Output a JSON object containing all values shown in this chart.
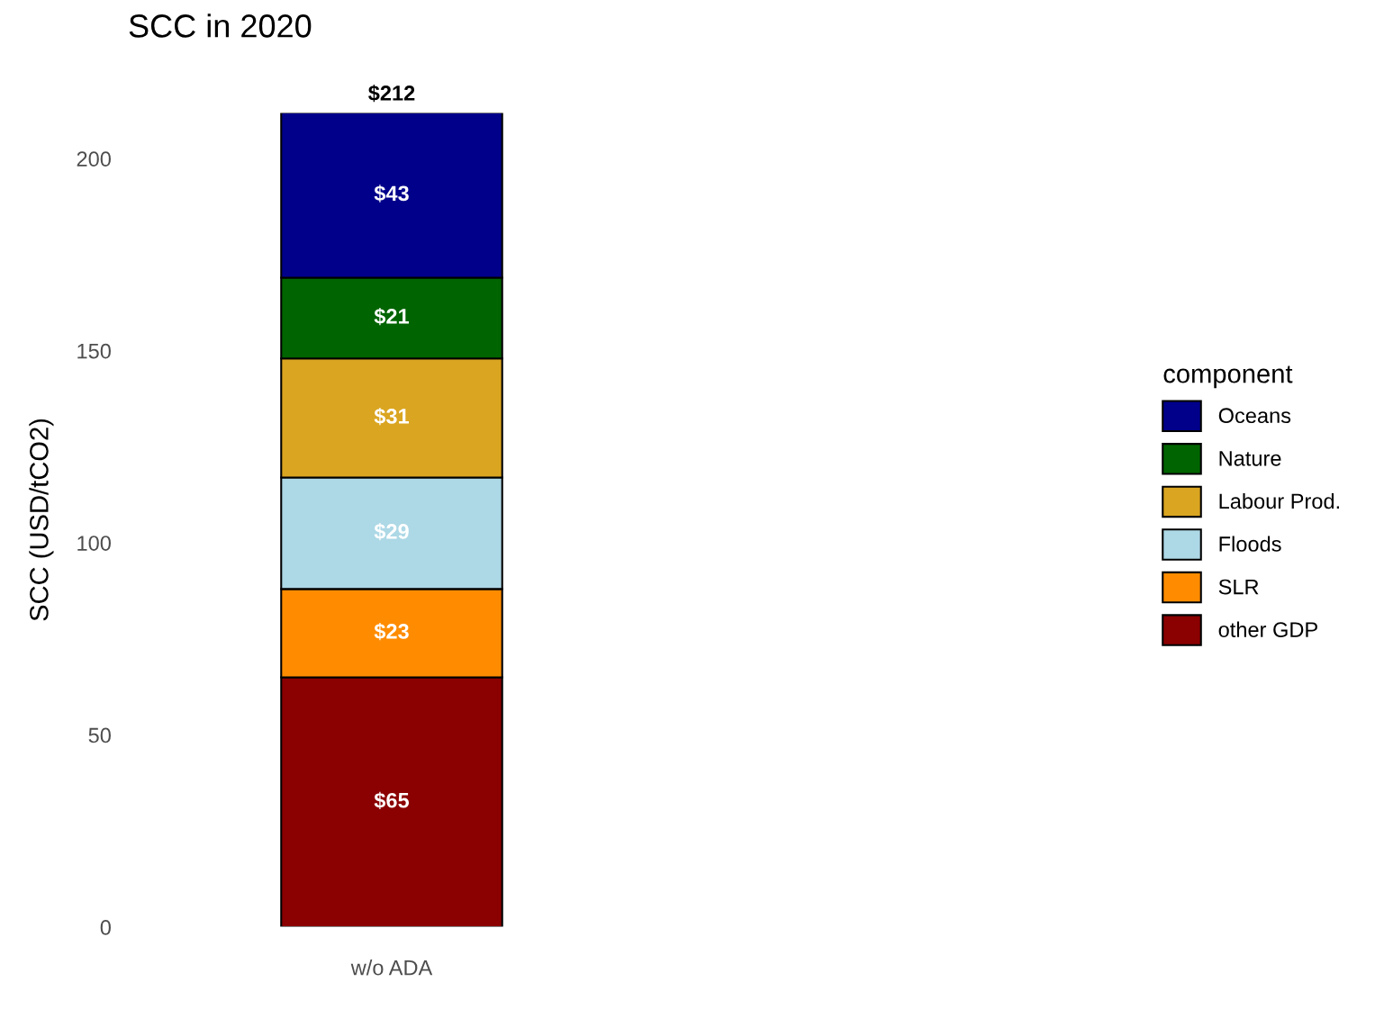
{
  "chart_data": {
    "type": "bar",
    "title": "SCC in 2020",
    "ylabel": "SCC (USD/tCO2)",
    "legend_title": "component",
    "categories": [
      "w/o ADA"
    ],
    "stacked": true,
    "series": [
      {
        "name": "other GDP",
        "color": "#8b0000",
        "values": [
          65
        ],
        "value_labels": [
          "$65"
        ]
      },
      {
        "name": "SLR",
        "color": "#ff8c00",
        "values": [
          23
        ],
        "value_labels": [
          "$23"
        ]
      },
      {
        "name": "Floods",
        "color": "#add8e6",
        "values": [
          29
        ],
        "value_labels": [
          "$29"
        ]
      },
      {
        "name": "Labour Prod.",
        "color": "#daa520",
        "values": [
          31
        ],
        "value_labels": [
          "$31"
        ]
      },
      {
        "name": "Nature",
        "color": "#006400",
        "values": [
          21
        ],
        "value_labels": [
          "$21"
        ]
      },
      {
        "name": "Oceans",
        "color": "#00008b",
        "values": [
          43
        ],
        "value_labels": [
          "$43"
        ]
      }
    ],
    "totals": [
      "$212"
    ],
    "ylim": [
      0,
      212
    ],
    "yticks": [
      0,
      50,
      100,
      150,
      200
    ],
    "grid": false,
    "legend": "right"
  }
}
